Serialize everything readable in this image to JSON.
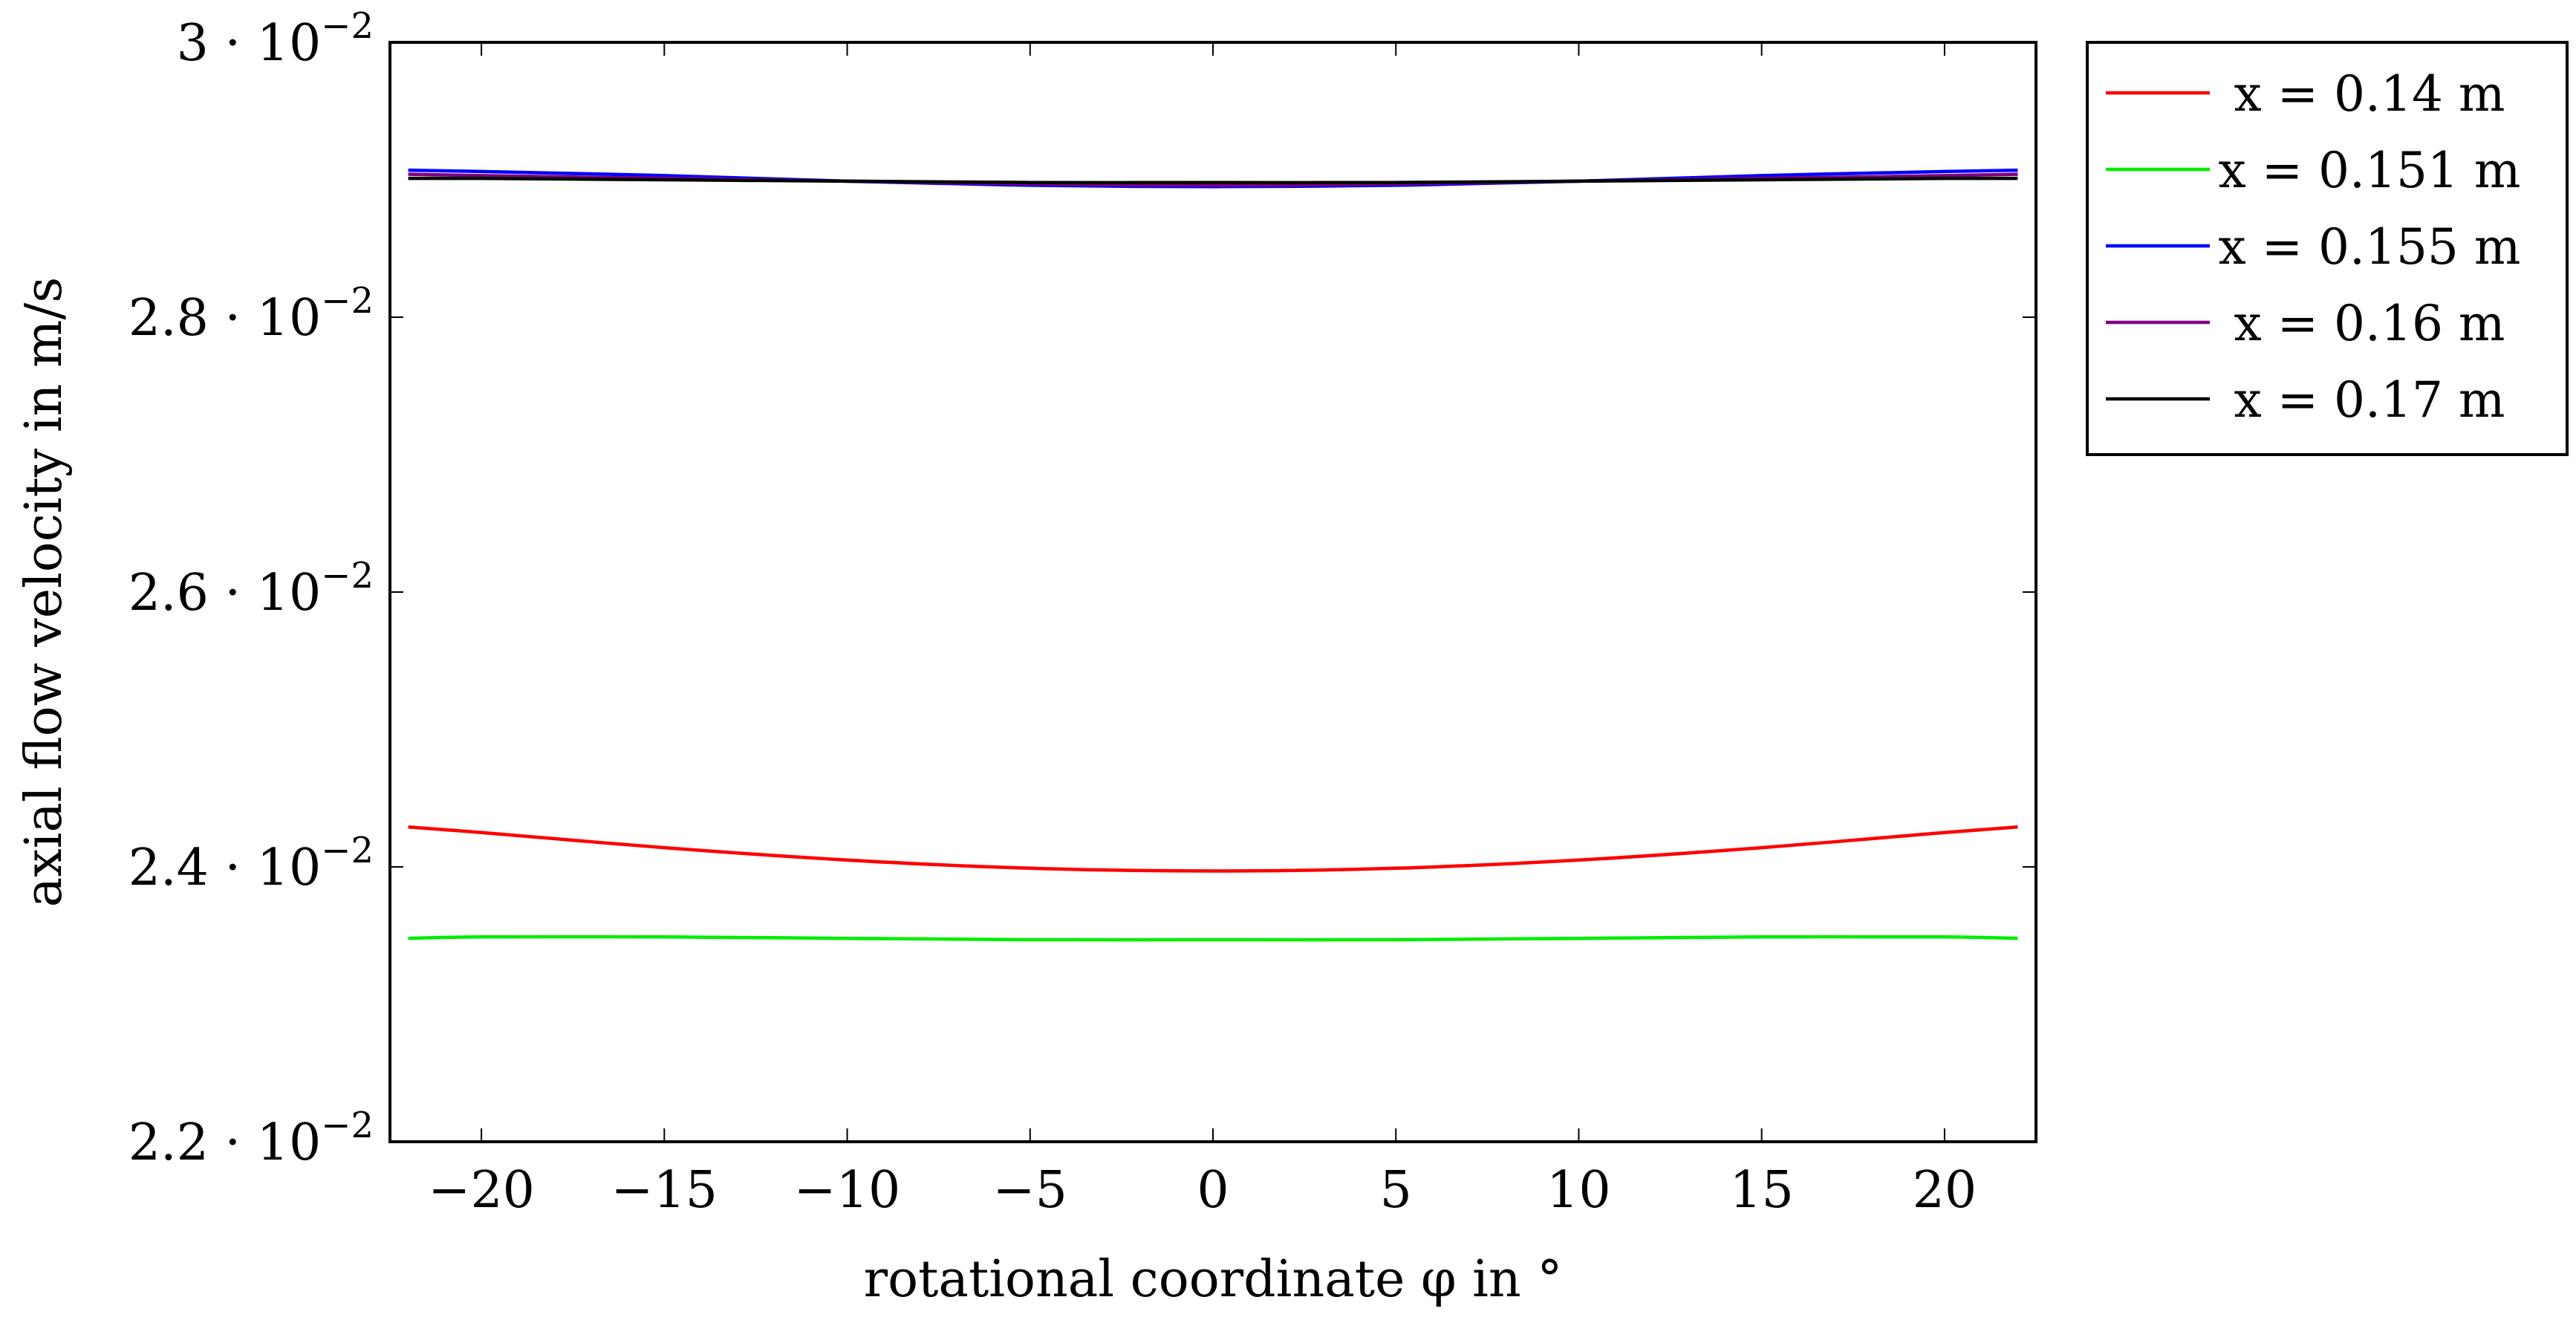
{
  "chart_data": {
    "type": "line",
    "xlabel": "rotational coordinate φ in °",
    "ylabel": "axial flow velocity in m/s",
    "xlim": [
      -22.5,
      22.5
    ],
    "ylim": [
      0.022,
      0.03
    ],
    "xticks": [
      {
        "value": -20,
        "label": "−20"
      },
      {
        "value": -15,
        "label": "−15"
      },
      {
        "value": -10,
        "label": "−10"
      },
      {
        "value": -5,
        "label": "−5"
      },
      {
        "value": 0,
        "label": "0"
      },
      {
        "value": 5,
        "label": "5"
      },
      {
        "value": 10,
        "label": "10"
      },
      {
        "value": 15,
        "label": "15"
      },
      {
        "value": 20,
        "label": "20"
      }
    ],
    "yticks": [
      {
        "value": 0.022,
        "mantissa": "2.2"
      },
      {
        "value": 0.024,
        "mantissa": "2.4"
      },
      {
        "value": 0.026,
        "mantissa": "2.6"
      },
      {
        "value": 0.028,
        "mantissa": "2.8"
      },
      {
        "value": 0.03,
        "mantissa": "3"
      }
    ],
    "ytick_suffix": "· 10",
    "ytick_exponent": "−2",
    "legend_position": "outside-top-right",
    "grid": false,
    "x": [
      -22,
      -20,
      -15,
      -10,
      -5,
      0,
      5,
      10,
      15,
      20,
      22
    ],
    "series": [
      {
        "name": "x = 0.14 m",
        "color": "#ff0000",
        "values": [
          0.02429,
          0.02425,
          0.02414,
          0.02405,
          0.02399,
          0.02397,
          0.02399,
          0.02405,
          0.02414,
          0.02425,
          0.02429
        ]
      },
      {
        "name": "x = 0.151 m",
        "color": "#00ee00",
        "values": [
          0.02348,
          0.02349,
          0.02349,
          0.02348,
          0.02347,
          0.02347,
          0.02347,
          0.02348,
          0.02349,
          0.02349,
          0.02348
        ]
      },
      {
        "name": "x = 0.155 m",
        "color": "#0000ff",
        "values": [
          0.02907,
          0.02906,
          0.02903,
          0.02899,
          0.02896,
          0.02895,
          0.02896,
          0.02899,
          0.02903,
          0.02906,
          0.02907
        ]
      },
      {
        "name": "x = 0.16 m",
        "color": "#800080",
        "values": [
          0.02904,
          0.02903,
          0.02901,
          0.02899,
          0.02897,
          0.02896,
          0.02897,
          0.02899,
          0.02901,
          0.02903,
          0.02904
        ]
      },
      {
        "name": "x = 0.17 m",
        "color": "#000000",
        "values": [
          0.02901,
          0.02901,
          0.029,
          0.02899,
          0.02898,
          0.02898,
          0.02898,
          0.02899,
          0.029,
          0.02901,
          0.02901
        ]
      }
    ]
  }
}
